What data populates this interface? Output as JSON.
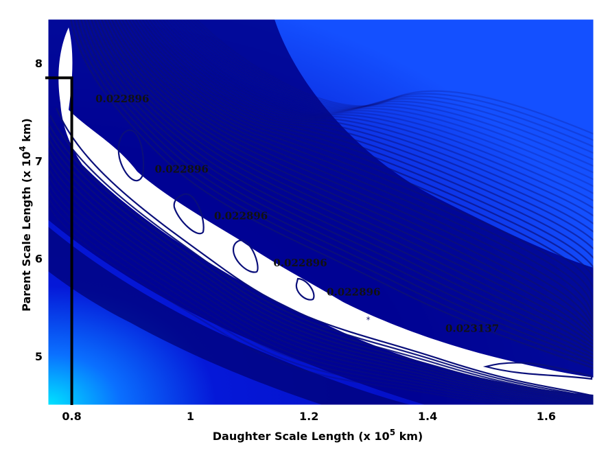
{
  "chart_data": {
    "type": "contour",
    "title": "",
    "xlabel": "Daughter Scale Length (x 10",
    "xlabel_exp": "5",
    "xlabel_unit": " km)",
    "ylabel": "Parent Scale Length (x 10",
    "ylabel_exp": "4",
    "ylabel_unit": " km)",
    "xlim": [
      0.76,
      1.68
    ],
    "ylim": [
      4.5,
      8.45
    ],
    "x_ticks": [
      0.8,
      1.0,
      1.2,
      1.4,
      1.6
    ],
    "x_tick_labels": [
      "0.8",
      "1",
      "1.2",
      "1.4",
      "1.6"
    ],
    "y_ticks": [
      5,
      6,
      7,
      8
    ],
    "y_tick_labels": [
      "5",
      "6",
      "7",
      "8"
    ],
    "grid": false,
    "colormap": {
      "low": "#00ddff",
      "mid": "#0a12d0",
      "high": "#000070"
    },
    "contour_levels": [
      {
        "label": "0.022896",
        "x": 0.84,
        "y": 7.6
      },
      {
        "label": "0.022896",
        "x": 0.94,
        "y": 6.88
      },
      {
        "label": "0.022896",
        "x": 1.04,
        "y": 6.4
      },
      {
        "label": "0.022896",
        "x": 1.14,
        "y": 5.92
      },
      {
        "label": "0.022896",
        "x": 1.23,
        "y": 5.62
      },
      {
        "label": "0.023137",
        "x": 1.43,
        "y": 5.25
      }
    ],
    "minimum_marker": {
      "x": 1.3,
      "y": 5.4
    },
    "bracket": {
      "x": 0.8,
      "y_top": 7.85,
      "x_start": 0.76
    }
  }
}
